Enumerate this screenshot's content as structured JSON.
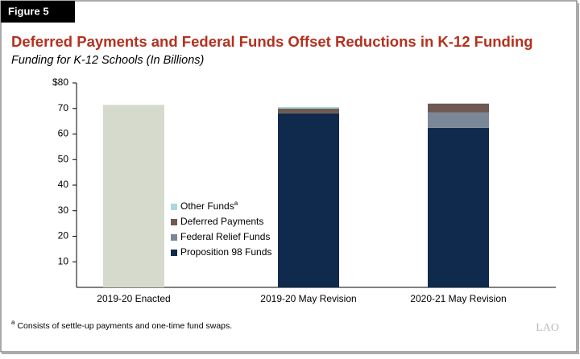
{
  "figure_label": "Figure 5",
  "footnote_marker": "a",
  "footnote": "Consists of settle-up payments and one-time fund swaps.",
  "logo": "LAO",
  "chart_data": {
    "type": "stacked_bar",
    "title": "Deferred Payments and Federal Funds Offset Reductions in K-12 Funding",
    "subtitle": "Funding for K-12 Schools (In Billions)",
    "categories": [
      "2019-20 Enacted",
      "2019-20 May Revision",
      "2020-21 May Revision"
    ],
    "series": [
      {
        "name": "Proposition 98 Funds",
        "color": "#0f2a4d",
        "point_colors": [
          "#d6dacd",
          "#0f2a4d",
          "#0f2a4d"
        ],
        "values": [
          71.4,
          68.1,
          62.4
        ]
      },
      {
        "name": "Federal Relief Funds",
        "color": "#7a8797",
        "values": [
          0,
          0,
          6.0
        ]
      },
      {
        "name": "Deferred Payments",
        "color": "#6e5a52",
        "values": [
          0,
          1.9,
          3.5
        ]
      },
      {
        "name": "Other Funds",
        "color": "#a8d8de",
        "values": [
          0,
          0.6,
          0
        ]
      }
    ],
    "ylim": [
      0,
      80
    ],
    "yticks": [
      10,
      20,
      30,
      40,
      50,
      60,
      70,
      {
        "value": 80,
        "label": "$80"
      }
    ],
    "grid": false
  }
}
